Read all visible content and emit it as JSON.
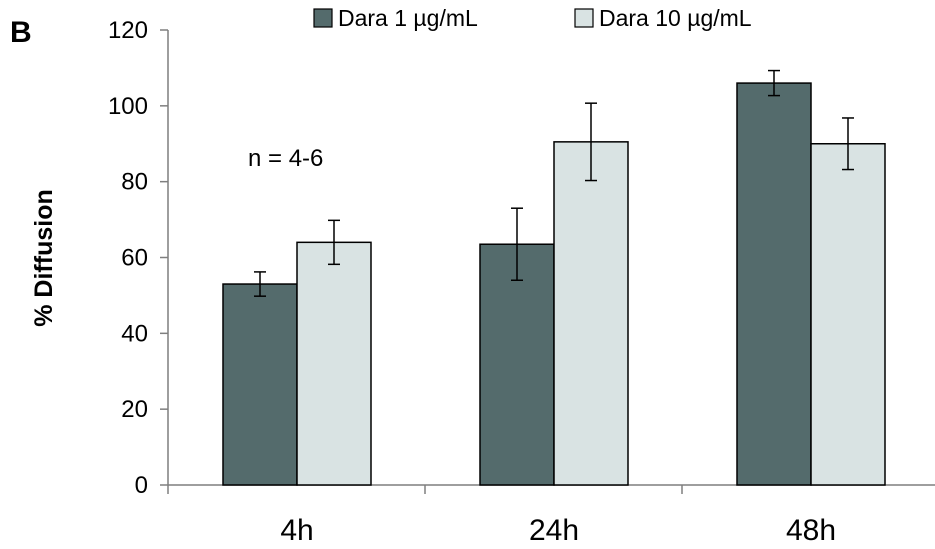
{
  "panel_label": "B",
  "chart_data": {
    "type": "bar",
    "categories": [
      "4h",
      "24h",
      "48h"
    ],
    "series": [
      {
        "name": "Dara 1 µg/mL",
        "color": "#546b6c",
        "values": [
          53,
          63.5,
          106
        ],
        "errors": [
          3.2,
          9.5,
          3.3
        ]
      },
      {
        "name": "Dara 10 µg/mL",
        "color": "#d9e3e3",
        "values": [
          64,
          90.5,
          90
        ],
        "errors": [
          5.8,
          10.2,
          6.8
        ]
      }
    ],
    "title": "",
    "xlabel": "",
    "ylabel": "% Diffusion",
    "ylim": [
      0,
      120
    ],
    "yticks": [
      0,
      20,
      40,
      60,
      80,
      100,
      120
    ],
    "grid": false,
    "legend": "top",
    "annotations": [
      {
        "text": "n = 4-6"
      }
    ]
  }
}
